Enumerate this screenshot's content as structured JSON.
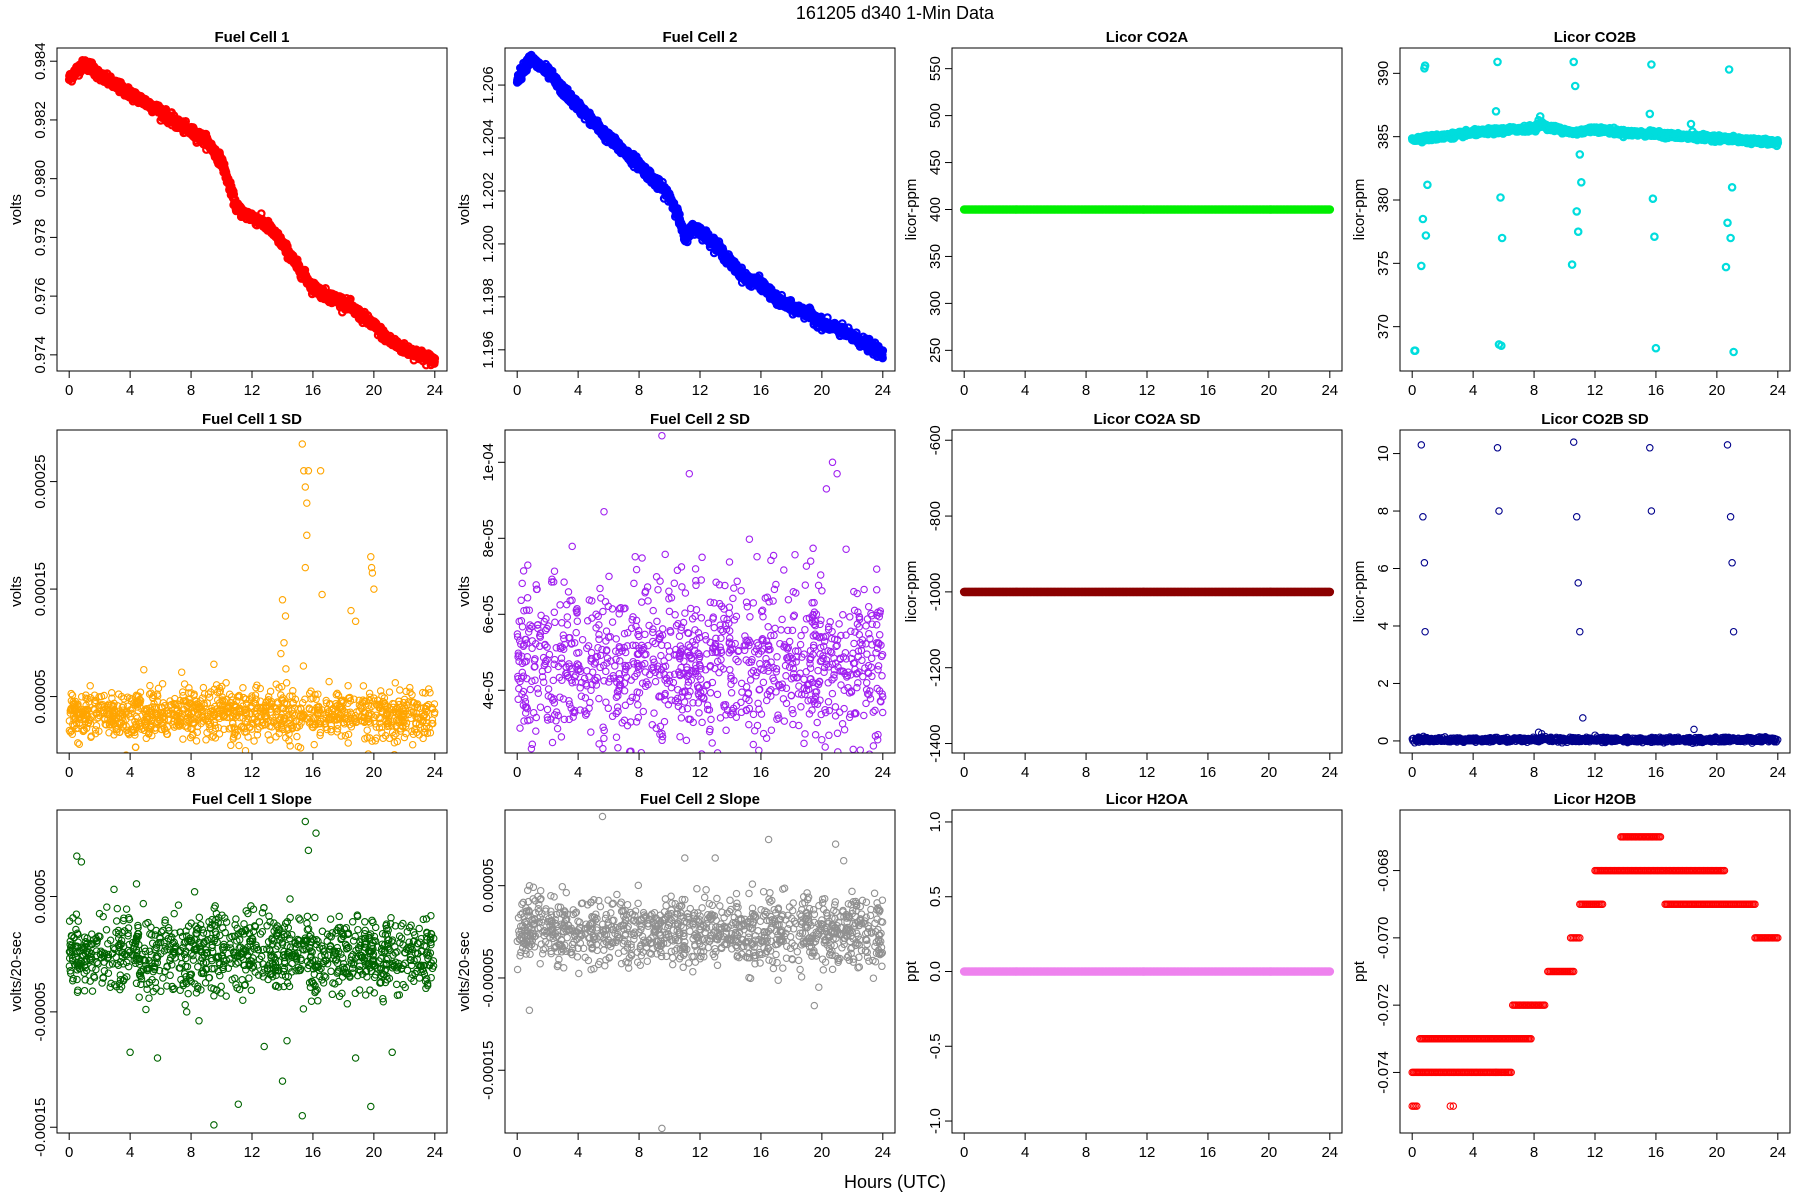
{
  "figure": {
    "title": "161205    d340    1-Min Data",
    "xlabel": "Hours (UTC)"
  },
  "chart_data": [
    {
      "type": "scatter",
      "title": "Fuel Cell 1",
      "ylabel": "volts",
      "color": "#ff0000",
      "marker": "heavy",
      "xlim": [
        -0.8,
        24.8
      ],
      "ylim": [
        0.97345,
        0.98445
      ],
      "xticks": [
        0,
        4,
        8,
        12,
        16,
        20,
        24
      ],
      "yticks": [
        0.974,
        0.976,
        0.978,
        0.98,
        0.982,
        0.984
      ],
      "ytick_labels": [
        "0.974",
        "0.976",
        "0.978",
        "0.980",
        "0.982",
        "0.984"
      ],
      "series": [
        {
          "kind": "trend",
          "x": [
            0,
            0.5,
            1,
            1.5,
            2,
            3,
            4,
            5,
            6,
            7,
            8,
            9,
            10,
            10.5,
            11,
            11.5,
            12,
            13,
            14,
            15,
            16,
            17,
            18,
            19,
            20,
            21,
            22,
            23,
            24
          ],
          "y": [
            0.9834,
            0.9837,
            0.9839,
            0.9838,
            0.9835,
            0.9832,
            0.9829,
            0.9826,
            0.9823,
            0.9819,
            0.9816,
            0.9813,
            0.9806,
            0.9798,
            0.979,
            0.9788,
            0.9787,
            0.9784,
            0.9778,
            0.977,
            0.9763,
            0.976,
            0.9758,
            0.9754,
            0.975,
            0.9745,
            0.9742,
            0.974,
            0.9738
          ],
          "noise": 9e-05
        }
      ]
    },
    {
      "type": "scatter",
      "title": "Fuel Cell 2",
      "ylabel": "volts",
      "color": "#0000ff",
      "marker": "heavy",
      "xlim": [
        -0.8,
        24.8
      ],
      "ylim": [
        1.1952,
        1.2074
      ],
      "xticks": [
        0,
        4,
        8,
        12,
        16,
        20,
        24
      ],
      "yticks": [
        1.196,
        1.198,
        1.2,
        1.202,
        1.204,
        1.206
      ],
      "ytick_labels": [
        "1.196",
        "1.198",
        "1.200",
        "1.202",
        "1.204",
        "1.206"
      ],
      "series": [
        {
          "kind": "trend",
          "x": [
            0,
            0.8,
            2,
            3,
            4,
            5,
            6,
            7,
            8,
            9,
            10,
            10.5,
            11,
            11.5,
            12,
            13,
            14,
            15,
            16,
            17,
            18,
            19,
            20,
            21,
            22,
            23,
            24
          ],
          "y": [
            1.2062,
            1.207,
            1.2065,
            1.2058,
            1.2052,
            1.2046,
            1.204,
            1.2035,
            1.203,
            1.2024,
            1.2018,
            1.2012,
            1.2002,
            1.2006,
            1.2005,
            1.2,
            1.1993,
            1.1987,
            1.1985,
            1.1979,
            1.1976,
            1.1974,
            1.197,
            1.1968,
            1.1965,
            1.1962,
            1.1958
          ],
          "noise": 0.0001
        }
      ]
    },
    {
      "type": "scatter",
      "title": "Licor CO2A",
      "ylabel": "licor-ppm",
      "color": "#00ee00",
      "marker": "heavy",
      "xlim": [
        -0.8,
        24.8
      ],
      "ylim": [
        228,
        572
      ],
      "xticks": [
        0,
        4,
        8,
        12,
        16,
        20,
        24
      ],
      "yticks": [
        250,
        300,
        350,
        400,
        450,
        500,
        550
      ],
      "ytick_labels": [
        "250",
        "300",
        "350",
        "400",
        "450",
        "500",
        "550"
      ],
      "series": [
        {
          "kind": "flat",
          "value": 400
        }
      ]
    },
    {
      "type": "scatter",
      "title": "Licor CO2B",
      "ylabel": "licor-ppm",
      "color": "#00dddd",
      "marker": "heavy",
      "xlim": [
        -0.8,
        24.8
      ],
      "ylim": [
        366.5,
        392
      ],
      "xticks": [
        0,
        4,
        8,
        12,
        16,
        20,
        24
      ],
      "yticks": [
        370,
        375,
        380,
        385,
        390
      ],
      "ytick_labels": [
        "370",
        "375",
        "380",
        "385",
        "390"
      ],
      "series": [
        {
          "kind": "trend",
          "x": [
            0,
            2,
            4,
            6,
            8,
            8.5,
            9,
            10,
            10.5,
            11,
            12,
            14,
            16,
            18,
            20,
            22,
            24
          ],
          "y": [
            384.8,
            385.0,
            385.3,
            385.5,
            385.7,
            386.0,
            385.7,
            385.5,
            385.3,
            385.4,
            385.6,
            385.3,
            385.2,
            385.0,
            384.9,
            384.7,
            384.5
          ],
          "noise": 0.1
        },
        {
          "kind": "points",
          "x": [
            0.15,
            0.2,
            0.6,
            0.7,
            0.8,
            0.85,
            0.9,
            1.0,
            5.5,
            5.6,
            5.7,
            5.8,
            5.9,
            5.85,
            10.5,
            10.6,
            10.7,
            10.8,
            10.9,
            11.0,
            11.1,
            15.6,
            15.7,
            15.8,
            15.9,
            16.0,
            20.6,
            20.7,
            20.8,
            20.9,
            21.0,
            21.1,
            18.3,
            18.4,
            8.3,
            8.4
          ],
          "y": [
            368.1,
            368.1,
            374.8,
            378.5,
            390.4,
            390.6,
            377.2,
            381.2,
            387.0,
            390.9,
            368.6,
            380.2,
            377.0,
            368.5,
            374.9,
            390.9,
            389.0,
            379.1,
            377.5,
            383.6,
            381.4,
            386.8,
            390.7,
            380.1,
            377.1,
            368.3,
            374.7,
            378.2,
            390.3,
            377.0,
            381.0,
            368.0,
            386.0,
            385.4,
            386.3,
            386.6
          ]
        }
      ]
    },
    {
      "type": "scatter",
      "title": "Fuel Cell 1 SD",
      "ylabel": "volts",
      "color": "#ffa500",
      "marker": "circle",
      "xlim": [
        -0.8,
        24.8
      ],
      "ylim": [
        -2.5e-06,
        0.000298
      ],
      "xticks": [
        0,
        4,
        8,
        12,
        16,
        20,
        24
      ],
      "yticks": [
        5e-05,
        0.00015,
        0.00025
      ],
      "ytick_labels": [
        "0.00005",
        "0.00015",
        "0.00025"
      ],
      "series": [
        {
          "kind": "noise",
          "base": 3.3e-05,
          "spread": 1.2e-05
        },
        {
          "kind": "points",
          "x": [
            15.3,
            15.4,
            15.5,
            15.6,
            15.7,
            15.6,
            15.5,
            16.5,
            16.6,
            14.0,
            14.2,
            13.9,
            14.1,
            19.8,
            19.9,
            20.0,
            19.85,
            18.5,
            18.8,
            9.5,
            4.9
          ],
          "y": [
            0.000285,
            0.00026,
            0.000245,
            0.00023,
            0.00026,
            0.0002,
            0.00017,
            0.00026,
            0.000145,
            0.00014,
            0.000125,
            9e-05,
            0.0001,
            0.00018,
            0.000165,
            0.00015,
            0.00017,
            0.00013,
            0.00012,
            8e-05,
            7.5e-05
          ]
        }
      ]
    },
    {
      "type": "scatter",
      "title": "Fuel Cell 2 SD",
      "ylabel": "volts",
      "color": "#a020f0",
      "marker": "circle",
      "xlim": [
        -0.8,
        24.8
      ],
      "ylim": [
        2.35e-05,
        0.0001085
      ],
      "xticks": [
        0,
        4,
        8,
        12,
        16,
        20,
        24
      ],
      "yticks": [
        4e-05,
        6e-05,
        8e-05,
        0.0001
      ],
      "ytick_labels": [
        "4e-05",
        "6e-05",
        "8e-05",
        "1e-04"
      ],
      "series": [
        {
          "kind": "noise",
          "base": 4.7e-05,
          "spread": 1.1e-05
        },
        {
          "kind": "points",
          "x": [
            9.5,
            11.3,
            20.7,
            21.0,
            5.7,
            20.3
          ],
          "y": [
            0.000107,
            9.7e-05,
            0.0001,
            9.7e-05,
            8.7e-05,
            9.3e-05
          ]
        }
      ]
    },
    {
      "type": "scatter",
      "title": "Licor CO2A SD",
      "ylabel": "licor-ppm",
      "color": "#8b0000",
      "marker": "heavy",
      "xlim": [
        -0.8,
        24.8
      ],
      "ylim": [
        -1425,
        -573
      ],
      "xticks": [
        0,
        4,
        8,
        12,
        16,
        20,
        24
      ],
      "yticks": [
        -1400,
        -1200,
        -1000,
        -800,
        -600
      ],
      "ytick_labels": [
        "-1400",
        "-1200",
        "-1000",
        "-800",
        "-600"
      ],
      "series": [
        {
          "kind": "flat",
          "value": -1000
        }
      ]
    },
    {
      "type": "scatter",
      "title": "Licor CO2B SD",
      "ylabel": "licor-ppm",
      "color": "#00008b",
      "marker": "circle",
      "xlim": [
        -0.8,
        24.8
      ],
      "ylim": [
        -0.42,
        10.82
      ],
      "xticks": [
        0,
        4,
        8,
        12,
        16,
        20,
        24
      ],
      "yticks": [
        0,
        2,
        4,
        6,
        8,
        10
      ],
      "ytick_labels": [
        "0",
        "2",
        "4",
        "6",
        "8",
        "10"
      ],
      "series": [
        {
          "kind": "noise",
          "base": 0.04,
          "spread": 0.04
        },
        {
          "kind": "points",
          "x": [
            0.6,
            0.7,
            0.8,
            0.85,
            5.6,
            5.7,
            10.6,
            10.8,
            10.9,
            11.0,
            15.6,
            15.7,
            20.7,
            20.9,
            21.0,
            21.1,
            11.2,
            8.3,
            8.5,
            12.0,
            18.5
          ],
          "y": [
            10.3,
            7.8,
            6.2,
            3.8,
            10.2,
            8.0,
            10.4,
            7.8,
            5.5,
            3.8,
            10.2,
            8.0,
            10.3,
            7.8,
            6.2,
            3.8,
            0.8,
            0.3,
            0.25,
            0.2,
            0.4
          ]
        }
      ]
    },
    {
      "type": "scatter",
      "title": "Fuel Cell 1 Slope",
      "ylabel": "volts/20-sec",
      "color": "#006400",
      "marker": "circle",
      "xlim": [
        -0.8,
        24.8
      ],
      "ylim": [
        -0.000155,
        0.000125
      ],
      "xticks": [
        0,
        4,
        8,
        12,
        16,
        20,
        24
      ],
      "yticks": [
        -0.00015,
        -5e-05,
        5e-05
      ],
      "ytick_labels": [
        "-0.00015",
        "-0.00005",
        "0.00005"
      ],
      "series": [
        {
          "kind": "noise",
          "base": 0.0,
          "spread": 1.7e-05
        },
        {
          "kind": "points",
          "x": [
            15.5,
            9.5,
            11.1,
            14.0,
            15.3,
            19.8,
            4.0,
            5.8,
            16.2,
            0.5,
            0.8,
            15.7,
            14.3,
            12.8,
            18.8,
            21.2
          ],
          "y": [
            0.000115,
            -0.000148,
            -0.00013,
            -0.00011,
            -0.00014,
            -0.000132,
            -8.5e-05,
            -9e-05,
            0.000105,
            8.5e-05,
            8e-05,
            9e-05,
            -7.5e-05,
            -8e-05,
            -9e-05,
            -8.5e-05
          ]
        }
      ]
    },
    {
      "type": "scatter",
      "title": "Fuel Cell 2 Slope",
      "ylabel": "volts/20-sec",
      "color": "#909090",
      "marker": "circle",
      "xlim": [
        -0.8,
        24.8
      ],
      "ylim": [
        -0.000218,
        0.000132
      ],
      "xticks": [
        0,
        4,
        8,
        12,
        16,
        20,
        24
      ],
      "yticks": [
        -0.00015,
        -5e-05,
        5e-05
      ],
      "ytick_labels": [
        "-0.00015",
        "-0.00005",
        "0.00005"
      ],
      "series": [
        {
          "kind": "noise",
          "base": 0.0,
          "spread": 1.8e-05
        },
        {
          "kind": "points",
          "x": [
            5.6,
            9.5,
            0.8,
            13.0,
            19.5,
            16.5,
            11.0,
            19.8,
            20.9
          ],
          "y": [
            0.000125,
            -0.000213,
            -8.5e-05,
            8e-05,
            -8e-05,
            0.0001,
            8e-05,
            -6e-05,
            9.5e-05
          ]
        }
      ]
    },
    {
      "type": "scatter",
      "title": "Licor H2OA",
      "ylabel": "ppt",
      "color": "#ee82ee",
      "marker": "heavy",
      "xlim": [
        -0.8,
        24.8
      ],
      "ylim": [
        -1.08,
        1.08
      ],
      "xticks": [
        0,
        4,
        8,
        12,
        16,
        20,
        24
      ],
      "yticks": [
        -1.0,
        -0.5,
        0.0,
        0.5,
        1.0
      ],
      "ytick_labels": [
        "-1.0",
        "-0.5",
        "0.0",
        "0.5",
        "1.0"
      ],
      "series": [
        {
          "kind": "flat",
          "value": 0.0
        }
      ]
    },
    {
      "type": "scatter",
      "title": "Licor H2OB",
      "ylabel": "ppt",
      "color": "#ff0000",
      "marker": "circle",
      "xlim": [
        -0.8,
        24.8
      ],
      "ylim": [
        -0.0758,
        -0.0662
      ],
      "xticks": [
        0,
        4,
        8,
        12,
        16,
        20,
        24
      ],
      "yticks": [
        -0.074,
        -0.072,
        -0.07,
        -0.068
      ],
      "ytick_labels": [
        "-0.074",
        "-0.072",
        "-0.070",
        "-0.068"
      ],
      "series": [
        {
          "kind": "steps",
          "segments": [
            [
              0.0,
              0.3,
              -0.075
            ],
            [
              0.0,
              5.5,
              -0.074
            ],
            [
              0.5,
              5.2,
              -0.073
            ],
            [
              2.5,
              2.7,
              -0.075
            ],
            [
              5.2,
              7.8,
              -0.073
            ],
            [
              5.5,
              6.5,
              -0.074
            ],
            [
              6.6,
              8.7,
              -0.072
            ],
            [
              8.9,
              10.6,
              -0.071
            ],
            [
              10.4,
              11.0,
              -0.07
            ],
            [
              11.0,
              12.5,
              -0.069
            ],
            [
              12.0,
              16.7,
              -0.068
            ],
            [
              13.7,
              16.3,
              -0.067
            ],
            [
              16.6,
              22.5,
              -0.069
            ],
            [
              16.8,
              20.5,
              -0.068
            ],
            [
              22.5,
              24.0,
              -0.07
            ]
          ]
        }
      ]
    }
  ]
}
